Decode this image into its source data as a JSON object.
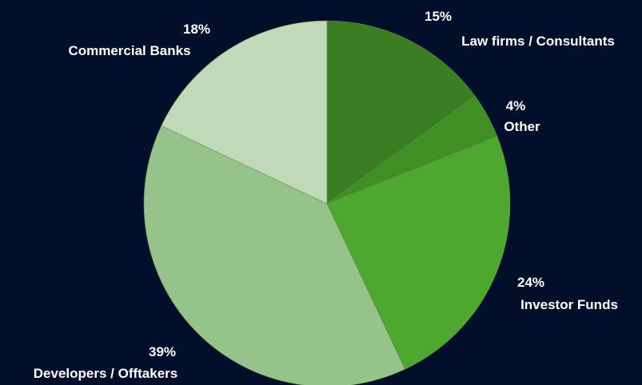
{
  "chart_data": {
    "type": "pie",
    "start_angle_deg": 0,
    "direction": "clockwise",
    "slices": [
      {
        "name": "Law firms / Consultants",
        "value": 15,
        "percent_label": "15%",
        "color": "#3b7d23"
      },
      {
        "name": "Other",
        "value": 4,
        "percent_label": "4%",
        "color": "#3f8f24"
      },
      {
        "name": "Investor Funds",
        "value": 24,
        "percent_label": "24%",
        "color": "#4ea72e"
      },
      {
        "name": "Developers / Offtakers",
        "value": 39,
        "percent_label": "39%",
        "color": "#95c38a"
      },
      {
        "name": "Commercial Banks",
        "value": 18,
        "percent_label": "18%",
        "color": "#c1d9b9"
      }
    ],
    "background": "#020f2b",
    "label_color": "#ffffff"
  }
}
